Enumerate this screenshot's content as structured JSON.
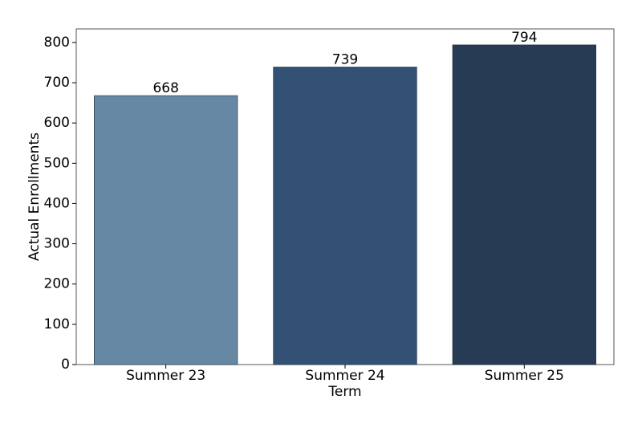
{
  "chart_data": {
    "type": "bar",
    "x_label": "Term",
    "y_label": "Actual Enrollments",
    "categories": [
      "Summer 23",
      "Summer 24",
      "Summer 25"
    ],
    "values": [
      668,
      739,
      794
    ],
    "colors": [
      "#6788a5",
      "#335075",
      "#273b55"
    ],
    "ylim": [
      0,
      833.7
    ],
    "yticks": [
      0,
      100,
      200,
      300,
      400,
      500,
      600,
      700,
      800
    ],
    "grid": false
  }
}
